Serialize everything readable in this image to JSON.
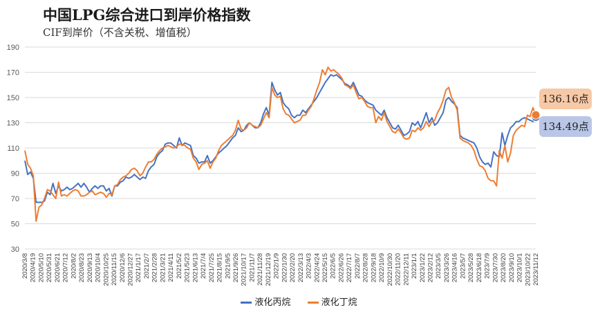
{
  "header": {
    "title": "中国LPG综合进口到岸价格指数",
    "subtitle": "CIF到岸价（不含关税、增值税）"
  },
  "badges": {
    "butane": "136.16点",
    "propane": "134.49点"
  },
  "colors": {
    "propane": "#4472c4",
    "butane": "#ed7d31",
    "grid": "#d9d9d9",
    "axis_text": "#595959"
  },
  "chart_data": {
    "type": "line",
    "title": "中国LPG综合进口到岸价格指数",
    "subtitle": "CIF到岸价（不含关税、增值税）",
    "ylim": [
      30,
      190
    ],
    "yticks": [
      30,
      50,
      70,
      90,
      110,
      130,
      150,
      170,
      190
    ],
    "grid": "horizontal",
    "legend_position": "bottom",
    "x_tick_labels": [
      "2020/3/8",
      "2020/4/19",
      "2020/5/10",
      "2020/5/31",
      "2020/6/21",
      "2020/7/12",
      "2020/8/2",
      "2020/8/23",
      "2020/9/13",
      "2020/10/4",
      "2020/10/25",
      "2020/11/15",
      "2020/12/6",
      "2020/12/27",
      "2021/1/17",
      "2021/2/7",
      "2021/2/28",
      "2021/3/21",
      "2021/4/11",
      "2021/5/2",
      "2021/5/23",
      "2021/6/13",
      "2021/7/4",
      "2021/7/25",
      "2021/8/15",
      "2021/9/5",
      "2021/9/26",
      "2021/10/17",
      "2021/11/7",
      "2021/11/28",
      "2021/12/19",
      "2022/1/9",
      "2022/1/30",
      "2022/2/20",
      "2022/3/13",
      "2022/4/3",
      "2022/4/24",
      "2022/5/15",
      "2022/6/5",
      "2022/6/26",
      "2022/7/17",
      "2022/8/7",
      "2022/8/28",
      "2022/9/18",
      "2022/10/9",
      "2022/10/30",
      "2022/11/20",
      "2022/12/11",
      "2023/1/1",
      "2023/1/22",
      "2023/2/12",
      "2023/3/5",
      "2023/3/26",
      "2023/4/16",
      "2023/5/7",
      "2023/5/28",
      "2023/6/18",
      "2023/7/9",
      "2023/7/30",
      "2023/8/20",
      "2023/9/10",
      "2023/10/1",
      "2023/10/22",
      "2023/11/12"
    ],
    "series": [
      {
        "name": "液化丙烷",
        "color": "#4472c4",
        "values": [
          100.0,
          89.0,
          91.0,
          86.0,
          67.0,
          67.0,
          67.0,
          68.0,
          75.0,
          73.0,
          82.0,
          74.0,
          80.0,
          76.0,
          77.0,
          79.0,
          77.0,
          78.0,
          80.0,
          82.0,
          79.0,
          82.0,
          79.0,
          75.0,
          78.0,
          80.0,
          78.0,
          80.0,
          80.0,
          76.0,
          78.0,
          72.0,
          80.0,
          80.0,
          83.0,
          84.0,
          87.0,
          86.0,
          87.0,
          89.0,
          87.0,
          85.0,
          87.0,
          86.0,
          92.0,
          95.0,
          97.0,
          103.0,
          106.0,
          108.0,
          113.0,
          114.0,
          114.0,
          112.0,
          110.0,
          118.0,
          112.0,
          114.0,
          113.0,
          112.0,
          104.0,
          102.0,
          98.0,
          99.0,
          99.0,
          104.0,
          98.0,
          100.0,
          103.0,
          106.0,
          108.0,
          110.0,
          112.0,
          115.0,
          118.0,
          120.0,
          126.0,
          123.0,
          124.0,
          128.0,
          130.0,
          128.0,
          126.0,
          126.0,
          130.0,
          137.0,
          142.0,
          136.0,
          162.0,
          156.0,
          152.0,
          154.0,
          146.0,
          143.0,
          141.0,
          136.0,
          134.0,
          136.0,
          136.0,
          140.0,
          138.0,
          141.0,
          144.0,
          147.0,
          150.0,
          154.0,
          158.0,
          162.0,
          165.0,
          168.0,
          167.0,
          168.0,
          166.0,
          164.0,
          161.0,
          160.0,
          158.0,
          162.0,
          157.0,
          152.0,
          151.0,
          148.0,
          146.0,
          145.0,
          144.0,
          140.0,
          138.0,
          136.0,
          140.0,
          134.0,
          130.0,
          126.0,
          125.0,
          128.0,
          124.0,
          120.0,
          121.0,
          123.0,
          130.0,
          128.0,
          131.0,
          126.0,
          132.0,
          138.0,
          130.0,
          134.0,
          128.0,
          130.0,
          134.0,
          138.0,
          148.0,
          150.0,
          147.0,
          145.0,
          142.0,
          120.0,
          118.0,
          117.0,
          116.0,
          115.0,
          114.0,
          110.0,
          103.0,
          99.0,
          97.0,
          98.0,
          95.0,
          107.0,
          104.0,
          103.0,
          122.0,
          112.0,
          120.0,
          126.0,
          128.0,
          131.0,
          131.0,
          133.0,
          134.0,
          133.0,
          132.0,
          131.0,
          134.49
        ]
      },
      {
        "name": "液化丁烷",
        "color": "#ed7d31",
        "values": [
          108.0,
          97.0,
          94.0,
          88.0,
          52.0,
          63.0,
          65.0,
          70.0,
          77.0,
          76.0,
          73.0,
          70.0,
          83.0,
          72.0,
          73.0,
          72.0,
          74.0,
          76.0,
          77.0,
          76.0,
          72.0,
          72.0,
          73.0,
          75.0,
          76.0,
          73.0,
          74.0,
          75.0,
          74.0,
          71.0,
          74.0,
          73.0,
          80.0,
          81.0,
          85.0,
          87.0,
          88.0,
          90.0,
          93.0,
          94.0,
          92.0,
          88.0,
          90.0,
          95.0,
          99.0,
          99.0,
          101.0,
          105.0,
          108.0,
          110.0,
          111.0,
          112.0,
          111.0,
          110.0,
          111.0,
          113.0,
          113.0,
          112.0,
          110.0,
          109.0,
          102.0,
          99.0,
          93.0,
          97.0,
          98.0,
          100.0,
          94.0,
          99.0,
          102.0,
          108.0,
          112.0,
          114.0,
          116.0,
          118.0,
          120.0,
          124.0,
          132.0,
          125.0,
          124.0,
          126.0,
          130.0,
          128.0,
          127.0,
          126.0,
          128.0,
          133.0,
          138.0,
          134.0,
          158.0,
          152.0,
          150.0,
          151.0,
          141.0,
          137.0,
          136.0,
          133.0,
          130.0,
          131.0,
          132.0,
          136.0,
          136.0,
          140.0,
          143.0,
          149.0,
          156.0,
          162.0,
          172.0,
          168.0,
          174.0,
          171.0,
          172.0,
          170.0,
          168.0,
          165.0,
          160.0,
          159.0,
          157.0,
          160.0,
          154.0,
          149.0,
          150.0,
          147.0,
          143.0,
          142.0,
          142.0,
          130.0,
          135.0,
          132.0,
          138.0,
          131.0,
          127.0,
          123.0,
          122.0,
          125.0,
          122.0,
          118.0,
          117.0,
          118.0,
          124.0,
          123.0,
          126.0,
          124.0,
          126.0,
          131.0,
          127.0,
          131.0,
          132.0,
          138.0,
          142.0,
          148.0,
          156.0,
          158.0,
          150.0,
          146.0,
          140.0,
          118.0,
          116.0,
          115.0,
          114.0,
          112.0,
          108.0,
          101.0,
          96.0,
          95.0,
          92.0,
          86.0,
          84.0,
          84.0,
          80.0,
          108.0,
          102.0,
          112.0,
          99.0,
          106.0,
          120.0,
          124.0,
          126.0,
          128.0,
          127.0,
          136.0,
          135.0,
          142.0,
          136.16
        ]
      }
    ]
  }
}
